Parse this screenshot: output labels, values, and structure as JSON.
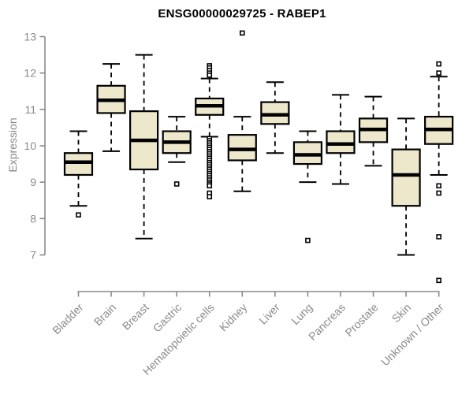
{
  "chart_data": {
    "type": "boxplot",
    "title": "ENSG00000029725 - RABEP1",
    "ylabel": "Expression",
    "xlabel": "",
    "ylim": [
      6.0,
      13.3
    ],
    "yticks": [
      7,
      8,
      9,
      10,
      11,
      12,
      13
    ],
    "grid": false,
    "categories": [
      "Bladder",
      "Brain",
      "Breast",
      "Gastric",
      "Hematopoietic cells",
      "Kidney",
      "Liver",
      "Lung",
      "Pancreas",
      "Prostate",
      "Skin",
      "Unknown / Other"
    ],
    "series": [
      {
        "name": "Bladder",
        "whisker_low": 8.35,
        "q1": 9.2,
        "median": 9.55,
        "q3": 9.8,
        "whisker_high": 10.4,
        "outliers": [
          8.1
        ]
      },
      {
        "name": "Brain",
        "whisker_low": 9.85,
        "q1": 10.9,
        "median": 11.25,
        "q3": 11.65,
        "whisker_high": 12.25,
        "outliers": []
      },
      {
        "name": "Breast",
        "whisker_low": 7.45,
        "q1": 9.35,
        "median": 10.15,
        "q3": 10.95,
        "whisker_high": 12.5,
        "outliers": []
      },
      {
        "name": "Gastric",
        "whisker_low": 9.55,
        "q1": 9.8,
        "median": 10.1,
        "q3": 10.4,
        "whisker_high": 10.8,
        "outliers": [
          8.95
        ]
      },
      {
        "name": "Hematopoietic cells",
        "whisker_low": 10.25,
        "q1": 10.85,
        "median": 11.1,
        "q3": 11.3,
        "whisker_high": 11.85,
        "outliers": [
          12.2,
          12.14,
          12.07,
          12.0,
          11.94,
          10.2,
          10.14,
          10.08,
          10.02,
          9.96,
          9.9,
          9.84,
          9.78,
          9.72,
          9.66,
          9.6,
          9.54,
          9.48,
          9.42,
          9.36,
          9.3,
          9.24,
          9.18,
          9.12,
          9.06,
          9.0,
          8.95,
          8.9,
          8.7,
          8.6
        ]
      },
      {
        "name": "Kidney",
        "whisker_low": 8.75,
        "q1": 9.6,
        "median": 9.9,
        "q3": 10.3,
        "whisker_high": 10.8,
        "outliers": [
          13.1
        ]
      },
      {
        "name": "Liver",
        "whisker_low": 9.8,
        "q1": 10.6,
        "median": 10.85,
        "q3": 11.2,
        "whisker_high": 11.75,
        "outliers": []
      },
      {
        "name": "Lung",
        "whisker_low": 9.0,
        "q1": 9.5,
        "median": 9.75,
        "q3": 10.1,
        "whisker_high": 10.4,
        "outliers": [
          7.4
        ]
      },
      {
        "name": "Pancreas",
        "whisker_low": 8.95,
        "q1": 9.8,
        "median": 10.05,
        "q3": 10.4,
        "whisker_high": 11.4,
        "outliers": []
      },
      {
        "name": "Prostate",
        "whisker_low": 9.45,
        "q1": 10.1,
        "median": 10.45,
        "q3": 10.75,
        "whisker_high": 11.35,
        "outliers": []
      },
      {
        "name": "Skin",
        "whisker_low": 7.0,
        "q1": 8.35,
        "median": 9.2,
        "q3": 9.9,
        "whisker_high": 10.75,
        "outliers": []
      },
      {
        "name": "Unknown / Other",
        "whisker_low": 9.2,
        "q1": 10.05,
        "median": 10.45,
        "q3": 10.8,
        "whisker_high": 11.9,
        "outliers": [
          12.25,
          12.0,
          8.9,
          8.7,
          7.5,
          6.3
        ]
      }
    ],
    "colors": {
      "box_fill": "#ede7cc",
      "box_stroke": "#000000",
      "median": "#000000",
      "whisker": "#000000",
      "axis": "#8a8a8a",
      "tick_label": "#8a8a8a",
      "title": "#000000",
      "background": "#ffffff"
    }
  }
}
